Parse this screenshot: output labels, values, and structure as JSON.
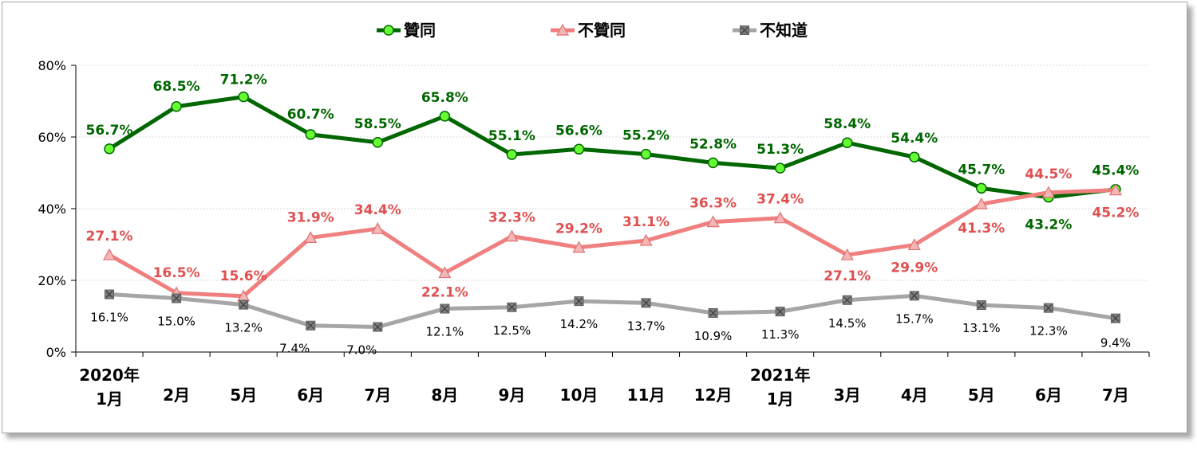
{
  "chart_data": {
    "type": "line",
    "categories": [
      {
        "year": "2020年",
        "month": "1月"
      },
      {
        "year": "",
        "month": "2月"
      },
      {
        "year": "",
        "month": "5月"
      },
      {
        "year": "",
        "month": "6月"
      },
      {
        "year": "",
        "month": "7月"
      },
      {
        "year": "",
        "month": "8月"
      },
      {
        "year": "",
        "month": "9月"
      },
      {
        "year": "",
        "month": "10月"
      },
      {
        "year": "",
        "month": "11月"
      },
      {
        "year": "",
        "month": "12月"
      },
      {
        "year": "2021年",
        "month": "1月"
      },
      {
        "year": "",
        "month": "3月"
      },
      {
        "year": "",
        "month": "4月"
      },
      {
        "year": "",
        "month": "5月"
      },
      {
        "year": "",
        "month": "6月"
      },
      {
        "year": "",
        "month": "7月"
      }
    ],
    "series": [
      {
        "name": "贊同",
        "color": "#006600",
        "marker_fill": "#66ff33",
        "marker": "circle",
        "label_style": "bold",
        "values": [
          56.7,
          68.5,
          71.2,
          60.7,
          58.5,
          65.8,
          55.1,
          56.6,
          55.2,
          52.8,
          51.3,
          58.4,
          54.4,
          45.7,
          43.2,
          45.4
        ],
        "labels": [
          "56.7%",
          "68.5%",
          "71.2%",
          "60.7%",
          "58.5%",
          "65.8%",
          "55.1%",
          "56.6%",
          "55.2%",
          "52.8%",
          "51.3%",
          "58.4%",
          "54.4%",
          "45.7%",
          "43.2%",
          "45.4%"
        ]
      },
      {
        "name": "不贊同",
        "color": "#f08080",
        "marker_fill": "#f4b6b6",
        "marker": "triangle",
        "label_style": "bold",
        "label_color": "#e05050",
        "values": [
          27.1,
          16.5,
          15.6,
          31.9,
          34.4,
          22.1,
          32.3,
          29.2,
          31.1,
          36.3,
          37.4,
          27.1,
          29.9,
          41.3,
          44.5,
          45.2
        ],
        "labels": [
          "27.1%",
          "16.5%",
          "15.6%",
          "31.9%",
          "34.4%",
          "22.1%",
          "32.3%",
          "29.2%",
          "31.1%",
          "36.3%",
          "37.4%",
          "27.1%",
          "29.9%",
          "41.3%",
          "44.5%",
          "45.2%"
        ]
      },
      {
        "name": "不知道",
        "color": "#a6a6a6",
        "marker_fill": "#808080",
        "marker": "square-x",
        "label_style": "plain",
        "label_color": "#000000",
        "values": [
          16.1,
          15.0,
          13.2,
          7.4,
          7.0,
          12.1,
          12.5,
          14.2,
          13.7,
          10.9,
          11.3,
          14.5,
          15.7,
          13.1,
          12.3,
          9.4
        ],
        "labels": [
          "16.1%",
          "15.0%",
          "13.2%",
          "7.4%",
          "7.0%",
          "12.1%",
          "12.5%",
          "14.2%",
          "13.7%",
          "10.9%",
          "11.3%",
          "14.5%",
          "15.7%",
          "13.1%",
          "12.3%",
          "9.4%"
        ]
      }
    ],
    "yticks": [
      "0%",
      "20%",
      "40%",
      "60%",
      "80%"
    ],
    "ylim": [
      0,
      80
    ],
    "grid": true,
    "legend_position": "top"
  }
}
